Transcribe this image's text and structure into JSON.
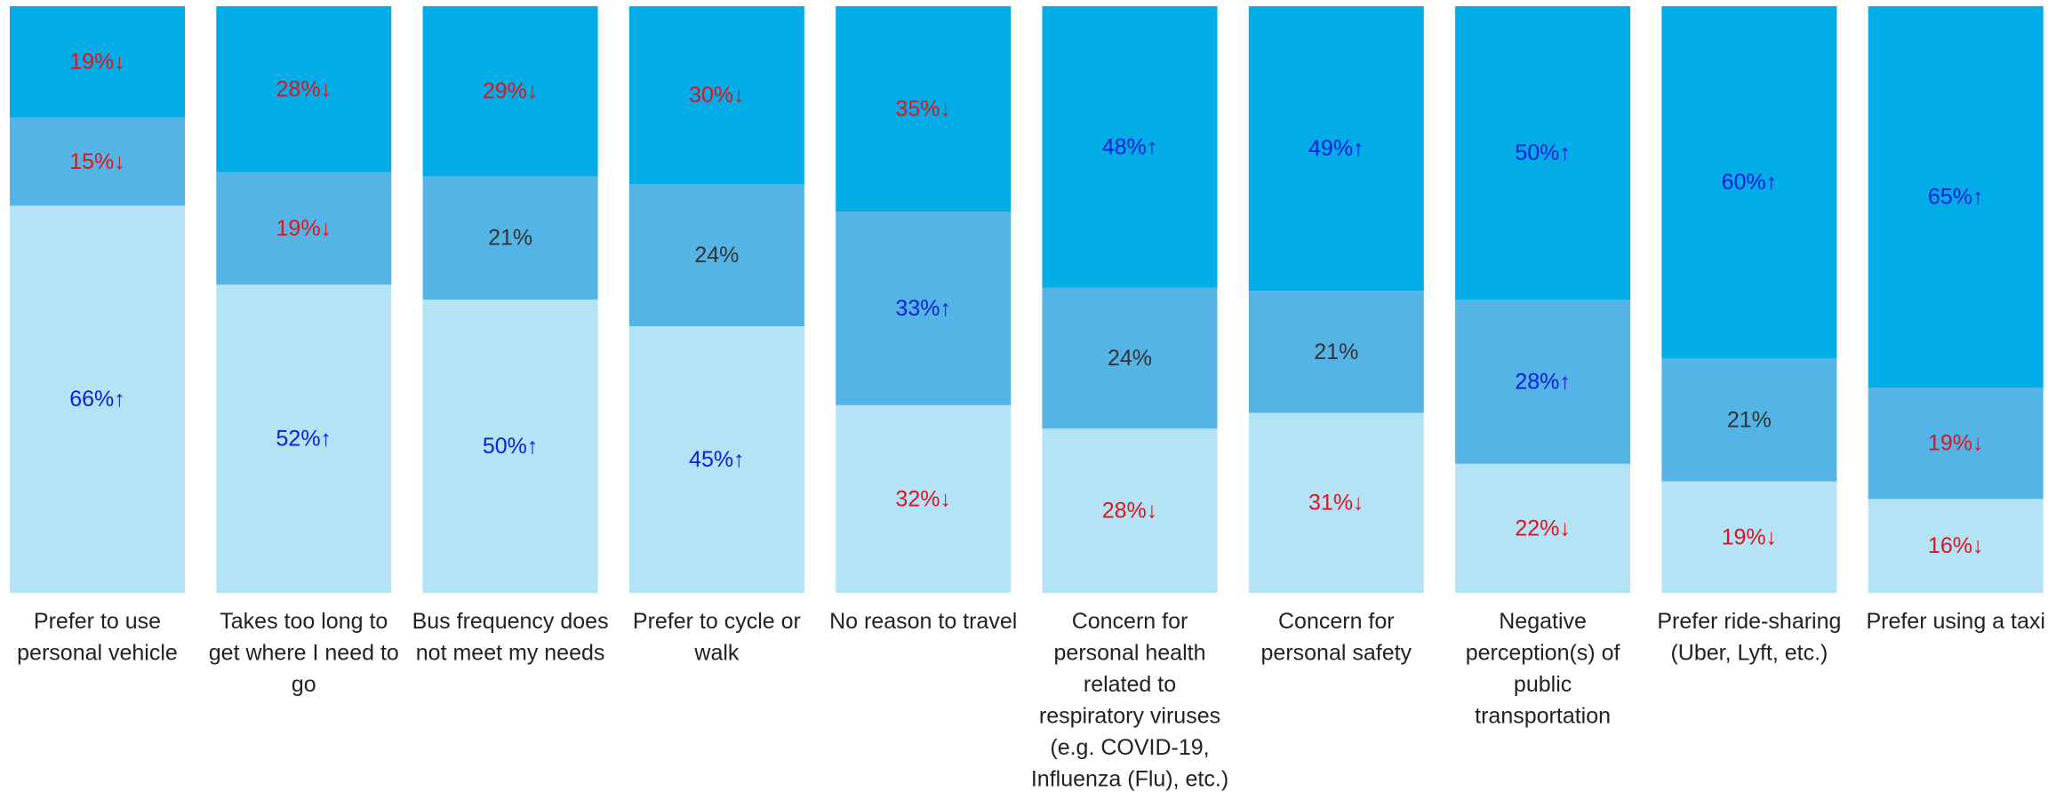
{
  "chart_data": {
    "type": "bar",
    "stacked": true,
    "percent_stacked": true,
    "categories": [
      "Prefer to use personal vehicle",
      "Takes too long to get where I need to go",
      "Bus frequency does not meet my needs",
      "Prefer to cycle or walk",
      "No reason to travel",
      "Concern for personal health related to respiratory viruses (e.g. COVID-19, Influenza (Flu), etc.)",
      "Concern for personal  safety",
      "Negative perception(s) of public transportation",
      "Prefer ride-sharing (Uber, Lyft, etc.)",
      "Prefer using a taxi"
    ],
    "category_lines": [
      [
        "Prefer to use",
        "personal vehicle"
      ],
      [
        "Takes too long to",
        "get where I need to",
        "go"
      ],
      [
        "Bus frequency does",
        "not meet my needs"
      ],
      [
        "Prefer to cycle or",
        "walk"
      ],
      [
        "No reason to travel"
      ],
      [
        "Concern for",
        "personal health",
        "related to",
        "respiratory viruses",
        "(e.g. COVID-19,",
        "Influenza (Flu), etc.)"
      ],
      [
        "Concern for",
        "personal  safety"
      ],
      [
        "Negative",
        "perception(s) of",
        "public",
        "transportation"
      ],
      [
        "Prefer ride-sharing",
        "(Uber, Lyft, etc.)"
      ],
      [
        "Prefer using a taxi"
      ]
    ],
    "series": [
      {
        "color": "#b3e3f5",
        "values": [
          66,
          52,
          50,
          45,
          32,
          28,
          31,
          22,
          19,
          16
        ],
        "labels": [
          "66%↑",
          "52%↑",
          "50%↑",
          "45%↑",
          "32%↓",
          "28%↓",
          "31%↓",
          "22%↓",
          "19%↓",
          "16%↓"
        ]
      },
      {
        "color": "#55b4e6",
        "values": [
          15,
          19,
          21,
          24,
          33,
          24,
          21,
          28,
          21,
          19
        ],
        "labels": [
          "15%↓",
          "19%↓",
          "21%",
          "24%",
          "33%↑",
          "24%",
          "21%",
          "28%↑",
          "21%",
          "19%↓"
        ]
      },
      {
        "color": "#02ace6",
        "values": [
          19,
          28,
          29,
          30,
          35,
          48,
          49,
          50,
          60,
          65
        ],
        "labels": [
          "19%↓",
          "28%↓",
          "29%↓",
          "30%↓",
          "35%↓",
          "48%↑",
          "49%↑",
          "50%↑",
          "60%↑",
          "65%↑"
        ]
      }
    ],
    "label_colors": {
      "up": "#0a1fd9",
      "down": "#e0141e",
      "neutral": "#333333"
    },
    "legend": "none",
    "grid": false
  }
}
